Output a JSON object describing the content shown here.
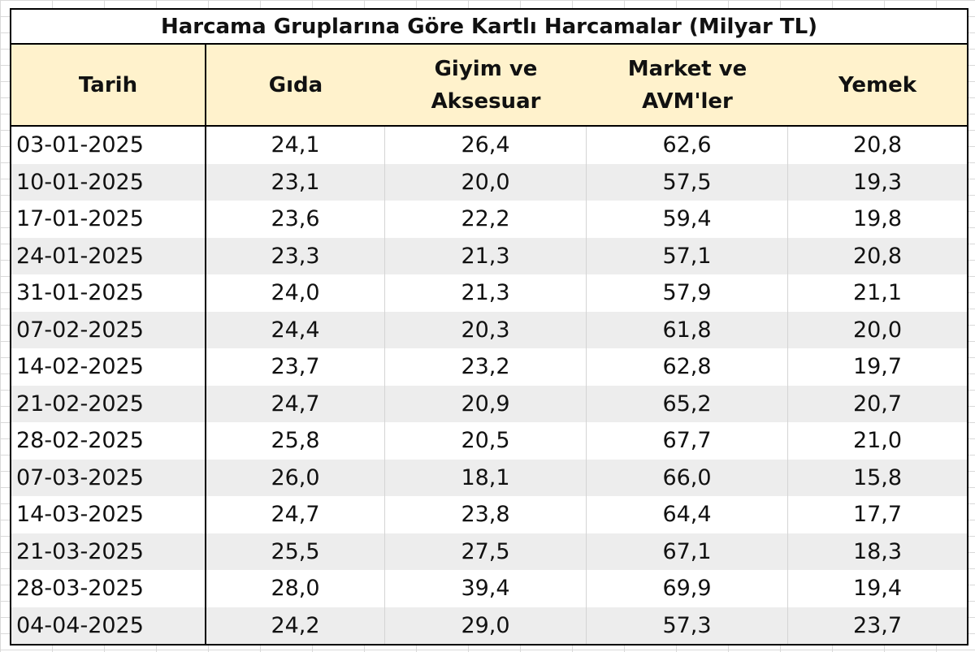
{
  "table": {
    "title": "Harcama Gruplarına Göre Kartlı Harcamalar (Milyar TL)",
    "headers": [
      "Tarih",
      "Gıda",
      "Giyim ve\nAksesuar",
      "Market ve\nAVM'ler",
      "Yemek"
    ],
    "rows": [
      [
        "03-01-2025",
        "24,1",
        "26,4",
        "62,6",
        "20,8"
      ],
      [
        "10-01-2025",
        "23,1",
        "20,0",
        "57,5",
        "19,3"
      ],
      [
        "17-01-2025",
        "23,6",
        "22,2",
        "59,4",
        "19,8"
      ],
      [
        "24-01-2025",
        "23,3",
        "21,3",
        "57,1",
        "20,8"
      ],
      [
        "31-01-2025",
        "24,0",
        "21,3",
        "57,9",
        "21,1"
      ],
      [
        "07-02-2025",
        "24,4",
        "20,3",
        "61,8",
        "20,0"
      ],
      [
        "14-02-2025",
        "23,7",
        "23,2",
        "62,8",
        "19,7"
      ],
      [
        "21-02-2025",
        "24,7",
        "20,9",
        "65,2",
        "20,7"
      ],
      [
        "28-02-2025",
        "25,8",
        "20,5",
        "67,7",
        "21,0"
      ],
      [
        "07-03-2025",
        "26,0",
        "18,1",
        "66,0",
        "15,8"
      ],
      [
        "14-03-2025",
        "24,7",
        "23,8",
        "64,4",
        "17,7"
      ],
      [
        "21-03-2025",
        "25,5",
        "27,5",
        "67,1",
        "18,3"
      ],
      [
        "28-03-2025",
        "28,0",
        "39,4",
        "69,9",
        "19,4"
      ],
      [
        "04-04-2025",
        "24,2",
        "29,0",
        "57,3",
        "23,7"
      ]
    ]
  },
  "colors": {
    "header_fill": "#fff2cc",
    "stripe_fill": "#ededed",
    "border": "#000000"
  }
}
